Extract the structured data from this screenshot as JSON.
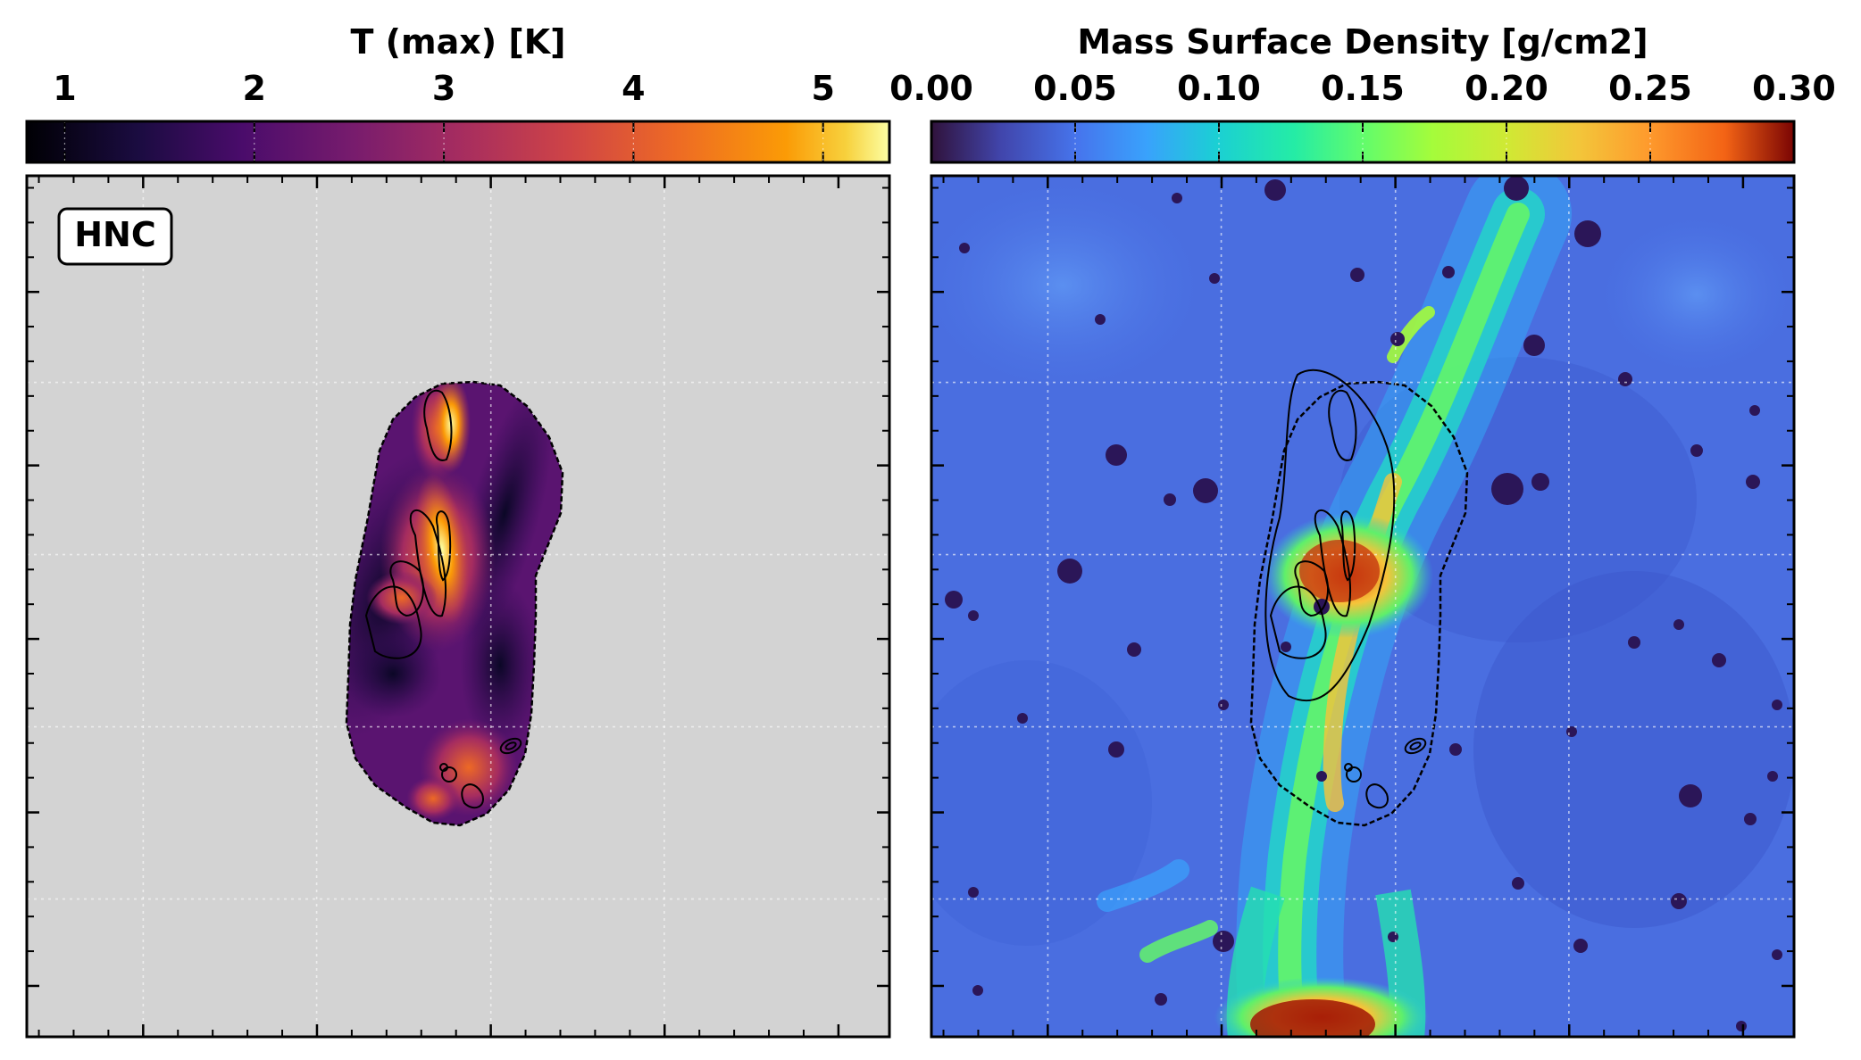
{
  "chart_data": [
    {
      "type": "heatmap",
      "colorbar": {
        "label": "T (max) [K]",
        "ticks": [
          "1",
          "2",
          "3",
          "4",
          "5"
        ],
        "tick_values": [
          1,
          2,
          3,
          4,
          5
        ],
        "range": [
          0.8,
          5.35
        ],
        "colormap": "inferno",
        "position": "top"
      },
      "badge": "HNC",
      "background_color": "#d3d3d3",
      "grid": true,
      "contour_color": "#000000"
    },
    {
      "type": "heatmap",
      "colorbar": {
        "label": "Mass Surface Density [g/cm2]",
        "ticks": [
          "0.00",
          "0.05",
          "0.10",
          "0.15",
          "0.20",
          "0.25",
          "0.30"
        ],
        "tick_values": [
          0.0,
          0.05,
          0.1,
          0.15,
          0.2,
          0.25,
          0.3
        ],
        "range": [
          0.0,
          0.3
        ],
        "colormap": "turbo",
        "position": "top"
      },
      "grid": true,
      "contour_color": "#000000"
    }
  ]
}
